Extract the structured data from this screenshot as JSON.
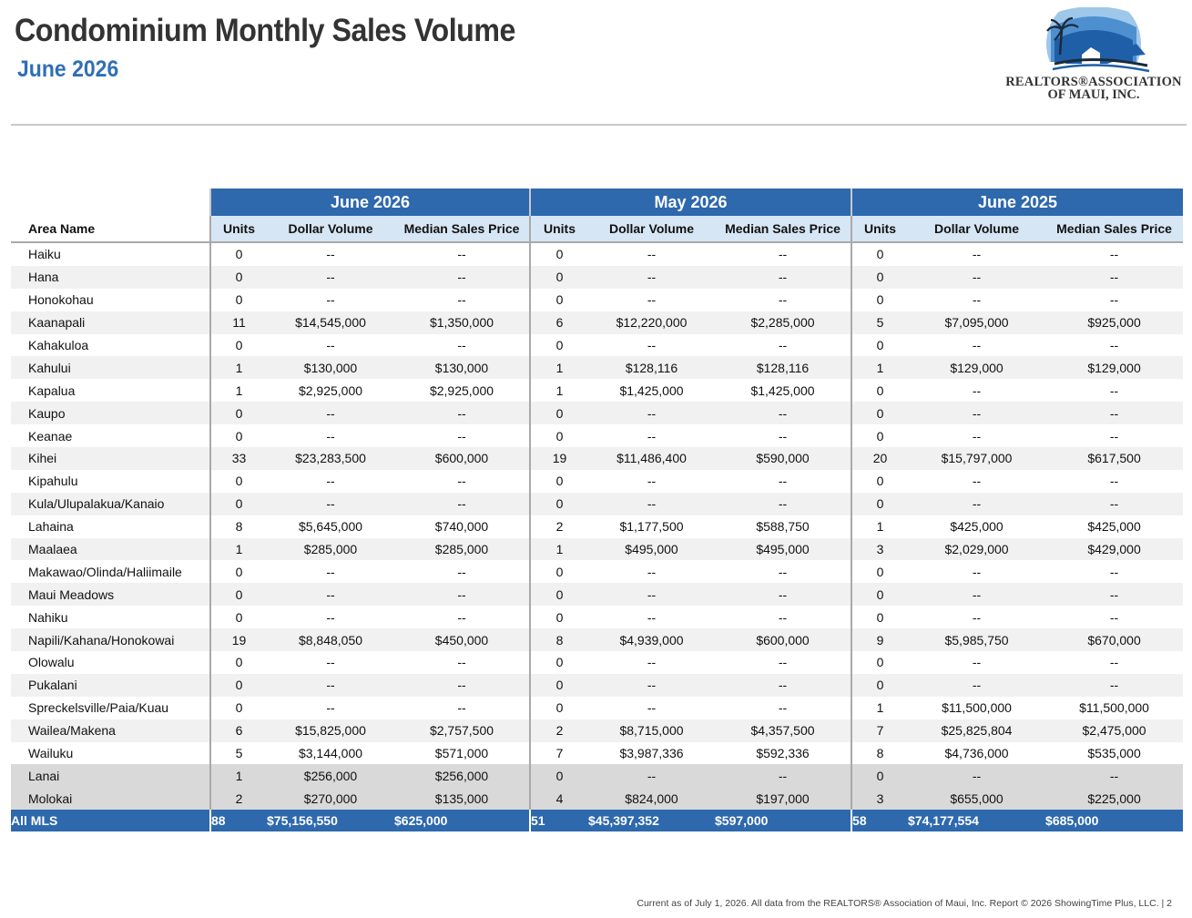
{
  "header": {
    "title": "Condominium Monthly Sales Volume",
    "subtitle": "June 2026"
  },
  "logo": {
    "line1": "REALTORS®ASSOCIATION",
    "line2": "OF MAUI, INC.",
    "colors": {
      "primary": "#1e5fa8",
      "light": "#8fbde6",
      "dark": "#1b2a3a"
    }
  },
  "colors": {
    "accent": "#2e68ad",
    "subheader": "#d7e6f5",
    "alt_row": "#f1f1f1",
    "island_row": "#d9d9d9"
  },
  "table": {
    "area_header": "Area Name",
    "groups": [
      "June 2026",
      "May 2026",
      "June 2025"
    ],
    "columns": [
      "Units",
      "Dollar Volume",
      "Median Sales Price"
    ],
    "rows": [
      {
        "area": "Haiku",
        "v": [
          "0",
          "--",
          "--",
          "0",
          "--",
          "--",
          "0",
          "--",
          "--"
        ]
      },
      {
        "area": "Hana",
        "v": [
          "0",
          "--",
          "--",
          "0",
          "--",
          "--",
          "0",
          "--",
          "--"
        ]
      },
      {
        "area": "Honokohau",
        "v": [
          "0",
          "--",
          "--",
          "0",
          "--",
          "--",
          "0",
          "--",
          "--"
        ]
      },
      {
        "area": "Kaanapali",
        "v": [
          "11",
          "$14,545,000",
          "$1,350,000",
          "6",
          "$12,220,000",
          "$2,285,000",
          "5",
          "$7,095,000",
          "$925,000"
        ]
      },
      {
        "area": "Kahakuloa",
        "v": [
          "0",
          "--",
          "--",
          "0",
          "--",
          "--",
          "0",
          "--",
          "--"
        ]
      },
      {
        "area": "Kahului",
        "v": [
          "1",
          "$130,000",
          "$130,000",
          "1",
          "$128,116",
          "$128,116",
          "1",
          "$129,000",
          "$129,000"
        ]
      },
      {
        "area": "Kapalua",
        "v": [
          "1",
          "$2,925,000",
          "$2,925,000",
          "1",
          "$1,425,000",
          "$1,425,000",
          "0",
          "--",
          "--"
        ]
      },
      {
        "area": "Kaupo",
        "v": [
          "0",
          "--",
          "--",
          "0",
          "--",
          "--",
          "0",
          "--",
          "--"
        ]
      },
      {
        "area": "Keanae",
        "v": [
          "0",
          "--",
          "--",
          "0",
          "--",
          "--",
          "0",
          "--",
          "--"
        ]
      },
      {
        "area": "Kihei",
        "v": [
          "33",
          "$23,283,500",
          "$600,000",
          "19",
          "$11,486,400",
          "$590,000",
          "20",
          "$15,797,000",
          "$617,500"
        ]
      },
      {
        "area": "Kipahulu",
        "v": [
          "0",
          "--",
          "--",
          "0",
          "--",
          "--",
          "0",
          "--",
          "--"
        ]
      },
      {
        "area": "Kula/Ulupalakua/Kanaio",
        "v": [
          "0",
          "--",
          "--",
          "0",
          "--",
          "--",
          "0",
          "--",
          "--"
        ]
      },
      {
        "area": "Lahaina",
        "v": [
          "8",
          "$5,645,000",
          "$740,000",
          "2",
          "$1,177,500",
          "$588,750",
          "1",
          "$425,000",
          "$425,000"
        ]
      },
      {
        "area": "Maalaea",
        "v": [
          "1",
          "$285,000",
          "$285,000",
          "1",
          "$495,000",
          "$495,000",
          "3",
          "$2,029,000",
          "$429,000"
        ]
      },
      {
        "area": "Makawao/Olinda/Haliimaile",
        "v": [
          "0",
          "--",
          "--",
          "0",
          "--",
          "--",
          "0",
          "--",
          "--"
        ]
      },
      {
        "area": "Maui Meadows",
        "v": [
          "0",
          "--",
          "--",
          "0",
          "--",
          "--",
          "0",
          "--",
          "--"
        ]
      },
      {
        "area": "Nahiku",
        "v": [
          "0",
          "--",
          "--",
          "0",
          "--",
          "--",
          "0",
          "--",
          "--"
        ]
      },
      {
        "area": "Napili/Kahana/Honokowai",
        "v": [
          "19",
          "$8,848,050",
          "$450,000",
          "8",
          "$4,939,000",
          "$600,000",
          "9",
          "$5,985,750",
          "$670,000"
        ]
      },
      {
        "area": "Olowalu",
        "v": [
          "0",
          "--",
          "--",
          "0",
          "--",
          "--",
          "0",
          "--",
          "--"
        ]
      },
      {
        "area": "Pukalani",
        "v": [
          "0",
          "--",
          "--",
          "0",
          "--",
          "--",
          "0",
          "--",
          "--"
        ]
      },
      {
        "area": "Spreckelsville/Paia/Kuau",
        "v": [
          "0",
          "--",
          "--",
          "0",
          "--",
          "--",
          "1",
          "$11,500,000",
          "$11,500,000"
        ]
      },
      {
        "area": "Wailea/Makena",
        "v": [
          "6",
          "$15,825,000",
          "$2,757,500",
          "2",
          "$8,715,000",
          "$4,357,500",
          "7",
          "$25,825,804",
          "$2,475,000"
        ]
      },
      {
        "area": "Wailuku",
        "v": [
          "5",
          "$3,144,000",
          "$571,000",
          "7",
          "$3,987,336",
          "$592,336",
          "8",
          "$4,736,000",
          "$535,000"
        ]
      },
      {
        "area": "Lanai",
        "v": [
          "1",
          "$256,000",
          "$256,000",
          "0",
          "--",
          "--",
          "0",
          "--",
          "--"
        ],
        "island": true
      },
      {
        "area": "Molokai",
        "v": [
          "2",
          "$270,000",
          "$135,000",
          "4",
          "$824,000",
          "$197,000",
          "3",
          "$655,000",
          "$225,000"
        ],
        "island": true
      }
    ],
    "total": {
      "area": "All MLS",
      "v": [
        "88",
        "$75,156,550",
        "$625,000",
        "51",
        "$45,397,352",
        "$597,000",
        "58",
        "$74,177,554",
        "$685,000"
      ]
    }
  },
  "footer": "Current as of July 1, 2026. All data from the REALTORS® Association of Maui, Inc. Report © 2026 ShowingTime Plus, LLC.  |  2"
}
